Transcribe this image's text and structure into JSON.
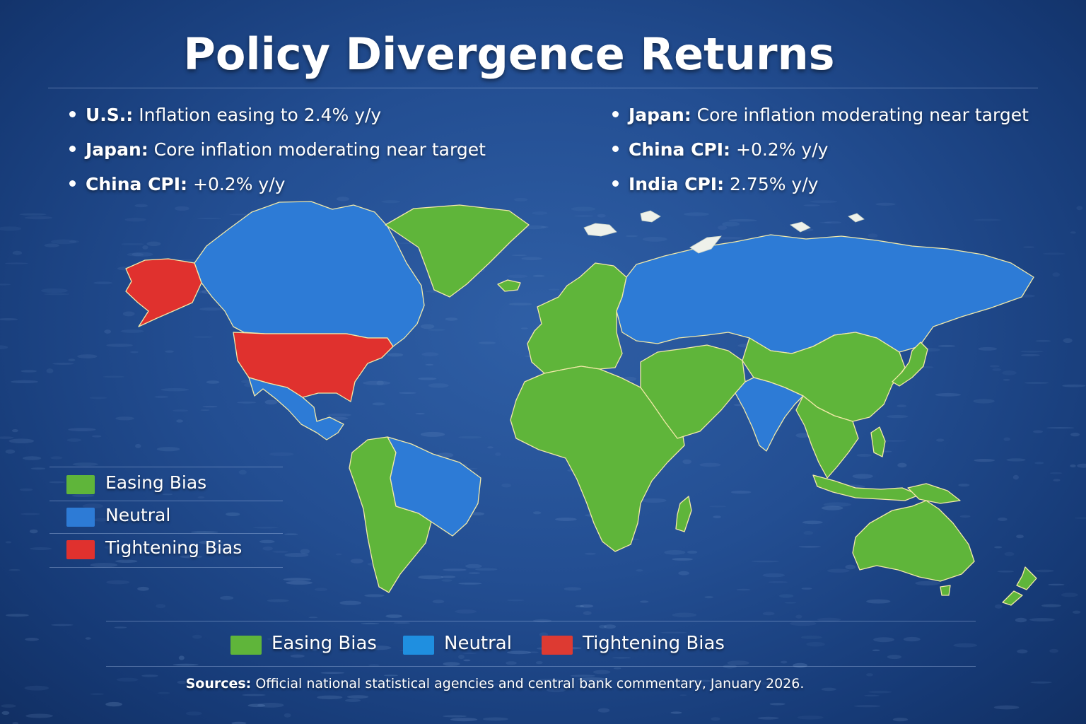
{
  "title": "Policy Divergence Returns",
  "bullets_left": [
    {
      "key": "U.S.:",
      "text": " Inflation easing to 2.4% y/y"
    },
    {
      "key": "Japan:",
      "text": " Core inflation moderating near target"
    },
    {
      "key": "China CPI:",
      "text": " +0.2% y/y"
    }
  ],
  "bullets_right": [
    {
      "key": "Japan:",
      "text": " Core inflation moderating near target"
    },
    {
      "key": "China CPI:",
      "text": " +0.2% y/y"
    },
    {
      "key": "India CPI:",
      "text": " 2.75% y/y"
    }
  ],
  "legend": [
    {
      "label": "Easing Bias",
      "color": "#5fb53a"
    },
    {
      "label": "Neutral",
      "color": "#2d7bd6"
    },
    {
      "label": "Tightening Bias",
      "color": "#e0312e"
    }
  ],
  "legend_bottom": [
    {
      "label": "Easing Bias",
      "color": "#5fb53a"
    },
    {
      "label": "Neutral",
      "color": "#1f8fe0"
    },
    {
      "label": "Tightening Bias",
      "color": "#dd3a32"
    }
  ],
  "regions": {
    "north_america_north": "neutral",
    "alaska": "tightening",
    "united_states": "tightening",
    "mexico_central_america": "neutral",
    "greenland": "easing",
    "south_america_west": "easing",
    "brazil": "neutral",
    "europe": "easing",
    "africa": "easing",
    "russia": "neutral",
    "middle_east": "easing",
    "china": "easing",
    "india": "neutral",
    "southeast_asia": "easing",
    "japan": "easing",
    "australia": "easing",
    "new_zealand": "easing"
  },
  "sources": {
    "key": "Sources:",
    "text": " Official national statistical agencies and central bank commentary, January 2026."
  }
}
